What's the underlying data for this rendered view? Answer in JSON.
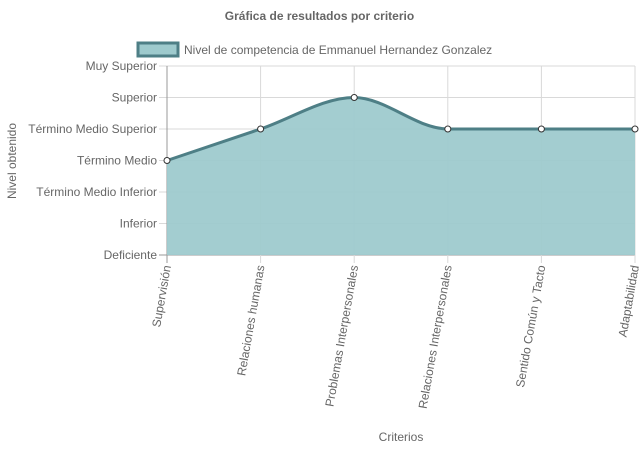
{
  "chart_data": {
    "type": "area",
    "title": "Gráfica de resultados por criterio",
    "xlabel": "Criterios",
    "ylabel": "Nivel obtenido",
    "categories": [
      "Supervisión",
      "Relaciones humanas",
      "Problemas Interpersonales",
      "Relaciones Interpersonales",
      "Sentido Común y Tacto",
      "Adaptabilidad"
    ],
    "y_tick_labels": [
      "Deficiente",
      "Inferior",
      "Término Medio Inferior",
      "Término Medio",
      "Término Medio Superior",
      "Superior",
      "Muy Superior"
    ],
    "ylim": [
      0,
      6
    ],
    "series": [
      {
        "name": "Nivel de competencia de Emmanuel Hernandez Gonzalez",
        "values": [
          3,
          4,
          5,
          4,
          4,
          4
        ]
      }
    ],
    "grid": true,
    "legend_position": "top",
    "colors": {
      "fill": "#9ecacd",
      "line": "#4e7f86",
      "point_fill": "#ffffff",
      "grid": "#d9d9d9",
      "axis": "#999999",
      "text": "#666666"
    }
  }
}
